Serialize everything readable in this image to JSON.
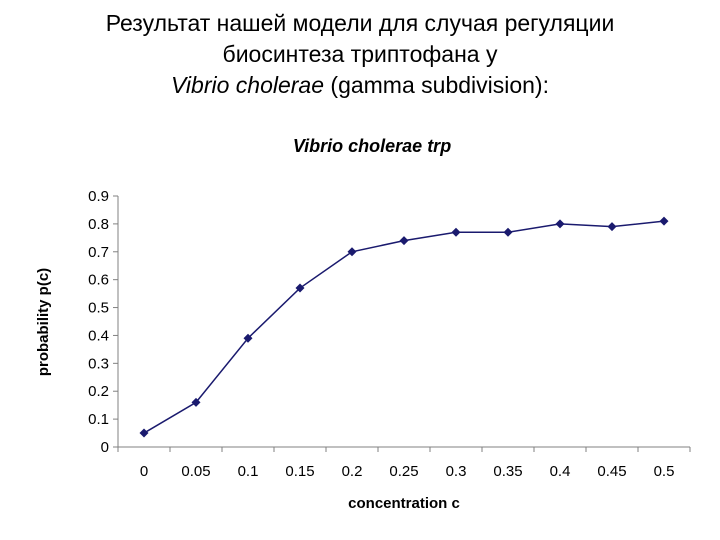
{
  "slide": {
    "title_line1": "Результат нашей модели для случая регуляции",
    "title_line2": "биосинтеза триптофана у",
    "title_line3_italic": "Vibrio cholerae",
    "title_line3_rest": " (gamma subdivision):"
  },
  "chart_data": {
    "type": "line",
    "title": "Vibrio cholerae trp",
    "xlabel": "concentration c",
    "ylabel": "probability p(c)",
    "categories": [
      "0",
      "0.05",
      "0.1",
      "0.15",
      "0.2",
      "0.25",
      "0.3",
      "0.35",
      "0.4",
      "0.45",
      "0.5"
    ],
    "values": [
      0.05,
      0.16,
      0.39,
      0.57,
      0.7,
      0.74,
      0.77,
      0.77,
      0.8,
      0.79,
      0.81
    ],
    "yticks": [
      "0",
      "0.1",
      "0.2",
      "0.3",
      "0.4",
      "0.5",
      "0.6",
      "0.7",
      "0.8",
      "0.9"
    ],
    "ylim": [
      0,
      0.9
    ],
    "grid": false,
    "series_color": "#1a1a6e",
    "marker": "diamond"
  }
}
